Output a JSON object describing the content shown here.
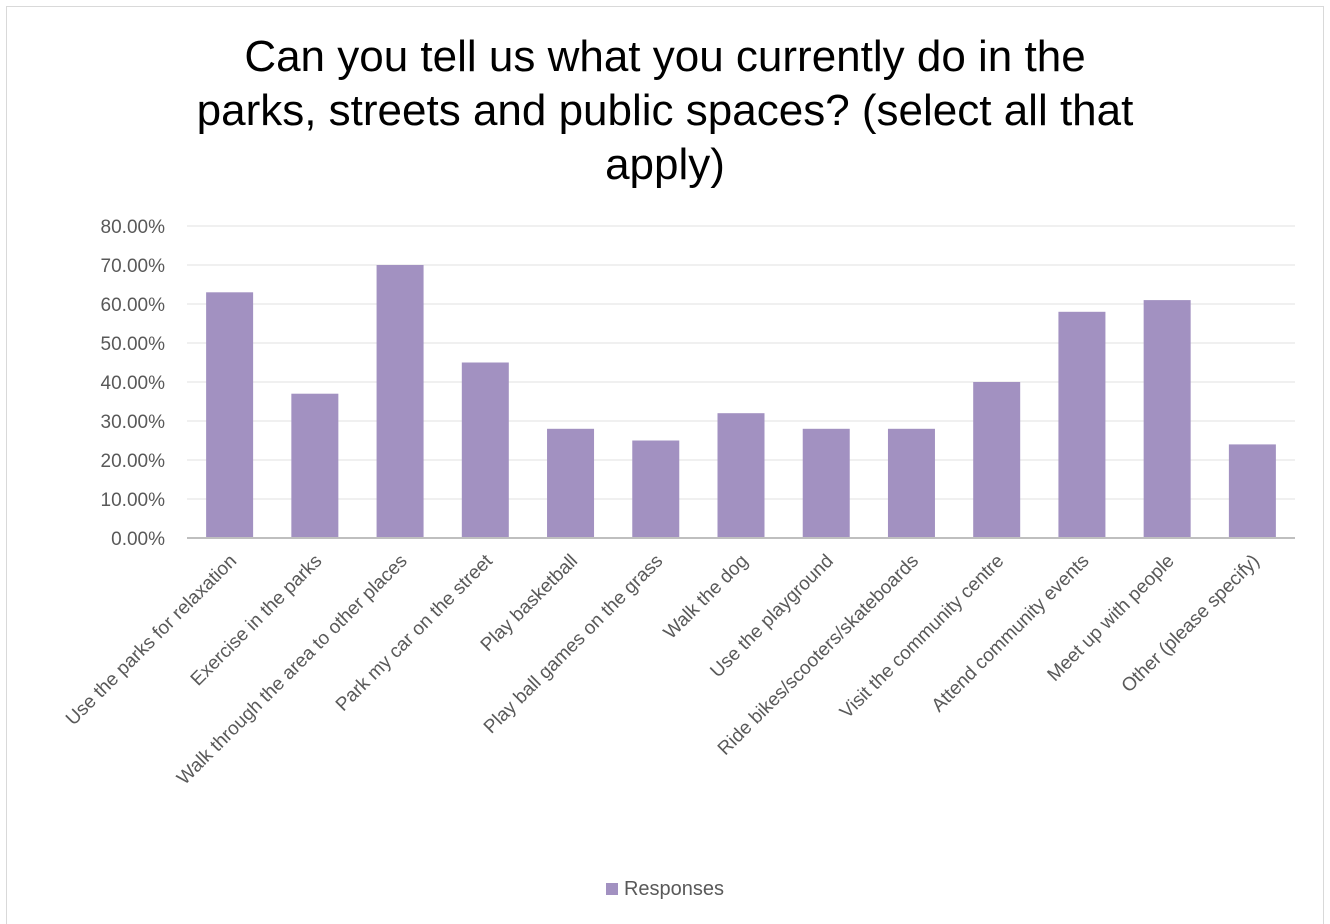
{
  "chart_data": {
    "type": "bar",
    "title_lines": [
      "Can you tell us what you currently do in the",
      "parks, streets and public spaces? (select all that",
      "apply)"
    ],
    "categories": [
      "Use the parks for relaxation",
      "Exercise in the parks",
      "Walk through the area to other places",
      "Park my car on the street",
      "Play basketball",
      "Play ball games on the grass",
      "Walk the dog",
      "Use the playground",
      "Ride bikes/scooters/skateboards",
      "Visit the community centre",
      "Attend community events",
      "Meet up with people",
      "Other (please specify)"
    ],
    "series": [
      {
        "name": "Responses",
        "values": [
          63,
          37,
          70,
          45,
          28,
          25,
          32,
          28,
          28,
          40,
          58,
          61,
          24
        ]
      }
    ],
    "ylim": [
      0,
      80
    ],
    "yticks": [
      "0.00%",
      "10.00%",
      "20.00%",
      "30.00%",
      "40.00%",
      "50.00%",
      "60.00%",
      "70.00%",
      "80.00%"
    ],
    "grid": true,
    "legend_position": "bottom",
    "colors": {
      "bar": "#a291c1",
      "grid": "#ececec",
      "axis": "#bfbfbf",
      "tick_text": "#595959"
    }
  }
}
